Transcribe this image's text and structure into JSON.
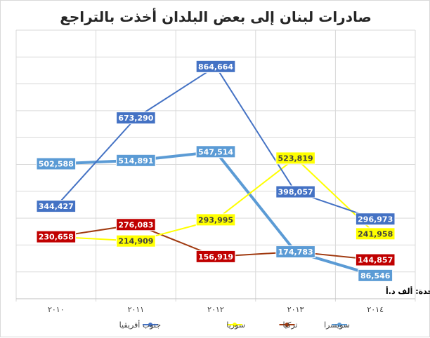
{
  "chart_data": {
    "type": "line",
    "title": "صادرات لبنان إلى بعض البلدان أخذت بالتراجع",
    "source_note": "بروفسور جاسم عجاقة | مصدر: ITC | الوحدة: ألف د.أ",
    "categories": [
      "٢٠١٠",
      "٢٠١١",
      "٢٠١٢",
      "٢٠١٣",
      "٢٠١٤"
    ],
    "ylim": [
      0,
      1000000
    ],
    "grid": true,
    "legend_position": "bottom",
    "series": [
      {
        "name": "جنوب أفريقيا",
        "color": "#4472C4",
        "label_bg": "#4472C4",
        "label_fg": "#ffffff",
        "values": [
          344427,
          673290,
          864664,
          398057,
          296973
        ],
        "labels": [
          "344,427",
          "673,290",
          "864,664",
          "398,057",
          "296,973"
        ]
      },
      {
        "name": "سوريا",
        "color": "#FFFF00",
        "label_bg": "#FFFF00",
        "label_fg": "#404040",
        "values": [
          230658,
          214909,
          293995,
          523819,
          241958
        ],
        "labels": [
          "",
          "214,909",
          "293,995",
          "523,819",
          "241,958"
        ]
      },
      {
        "name": "تركيا",
        "color": "#A0390F",
        "label_bg": "#C00000",
        "label_fg": "#ffffff",
        "values": [
          230658,
          276083,
          156919,
          174783,
          144857
        ],
        "labels": [
          "230,658",
          "276,083",
          "156,919",
          "",
          "144,857"
        ]
      },
      {
        "name": "سويسرا",
        "color": "#5B9BD5",
        "label_bg": "#5B9BD5",
        "label_fg": "#ffffff",
        "values": [
          502588,
          514891,
          547514,
          174783,
          86546
        ],
        "labels": [
          "502,588",
          "514,891",
          "547,514",
          "174,783",
          "86,546"
        ]
      }
    ]
  }
}
